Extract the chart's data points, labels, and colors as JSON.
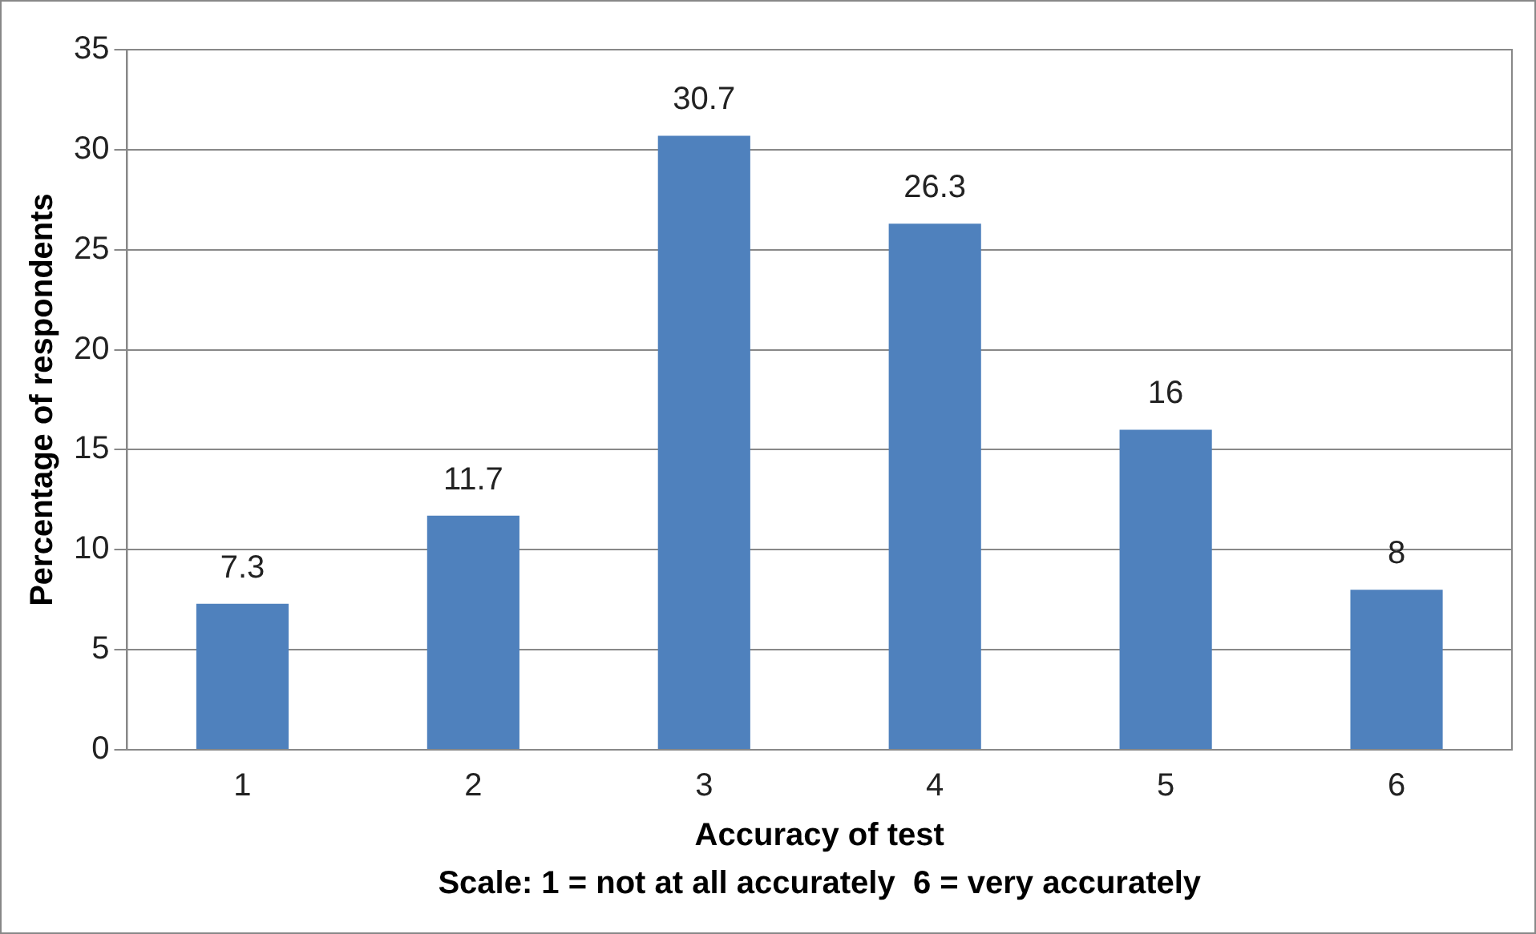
{
  "chart_data": {
    "type": "bar",
    "xlabel": "Accuracy of test",
    "ylabel": "Percentage of respondents",
    "annotations": [
      "Scale: 1 = not at all accurately  6 = very accurately"
    ],
    "categories": [
      "1",
      "2",
      "3",
      "4",
      "5",
      "6"
    ],
    "values": [
      7.3,
      11.7,
      30.7,
      26.3,
      16,
      8
    ],
    "color": "#4f81bd",
    "ylim": [
      0,
      35
    ],
    "yticks": [
      0,
      5,
      10,
      15,
      20,
      25,
      30,
      35
    ],
    "grid": "y",
    "data_labels": true
  }
}
